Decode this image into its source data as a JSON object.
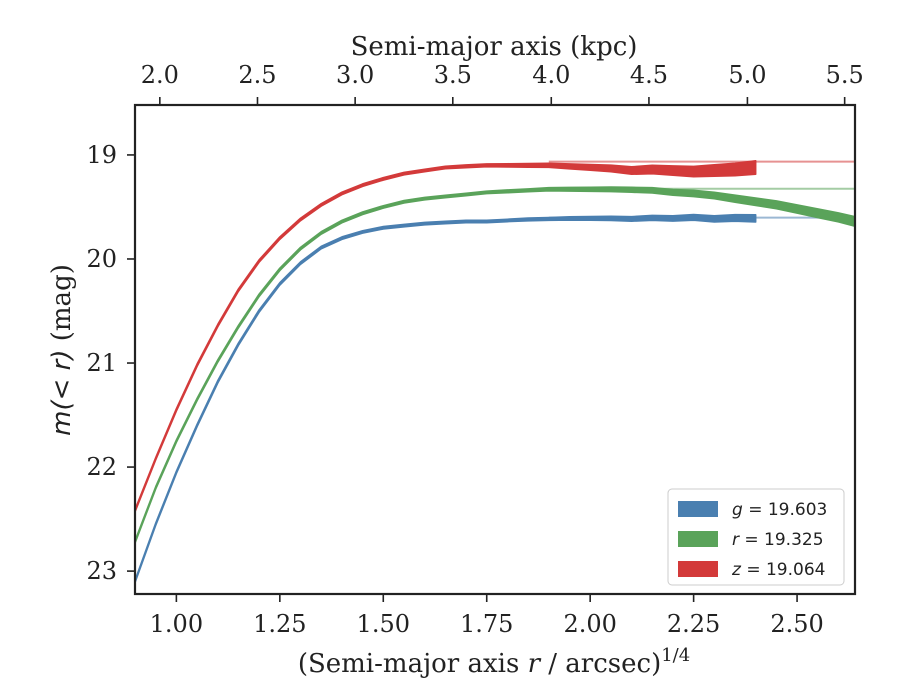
{
  "chart_data": {
    "type": "line",
    "title": "",
    "xlabel_bottom": "(Semi-major axis r / arcsec)",
    "xlabel_bottom_var": "r",
    "xlabel_bottom_pre": "(Semi-major axis ",
    "xlabel_bottom_post": " / arcsec)",
    "xlabel_bottom_exp": "1/4",
    "xlabel_top": "Semi-major axis (kpc)",
    "ylabel": "m(< r) (mag)",
    "ylabel_pre": "m",
    "ylabel_mid": "(< r)",
    "ylabel_post": " (mag)",
    "xlim": [
      0.9,
      2.64
    ],
    "ylim": [
      23.22,
      18.52
    ],
    "y_inverted": true,
    "x_ticks": [
      1.0,
      1.25,
      1.5,
      1.75,
      2.0,
      2.25,
      2.5
    ],
    "x_tick_labels": [
      "1.00",
      "1.25",
      "1.50",
      "1.75",
      "2.00",
      "2.25",
      "2.50"
    ],
    "y_ticks": [
      19,
      20,
      21,
      22,
      23
    ],
    "y_tick_labels": [
      "19",
      "20",
      "21",
      "22",
      "23"
    ],
    "top_ticks_kpc": [
      2.0,
      2.5,
      3.0,
      3.5,
      4.0,
      4.5,
      5.0,
      5.5
    ],
    "top_tick_labels": [
      "2.0",
      "2.5",
      "3.0",
      "3.5",
      "4.0",
      "4.5",
      "5.0",
      "5.5"
    ],
    "top_tick_x_positions": [
      0.96,
      1.196,
      1.432,
      1.668,
      1.906,
      2.142,
      2.38,
      2.615
    ],
    "legend_position": "lower right",
    "series": [
      {
        "name": "g",
        "label_var": "g",
        "label_value": " = 19.603",
        "asymptote": 19.603,
        "color": "#4a7fb0",
        "x": [
          0.9,
          0.95,
          1.0,
          1.05,
          1.1,
          1.15,
          1.2,
          1.25,
          1.3,
          1.35,
          1.4,
          1.45,
          1.5,
          1.55,
          1.6,
          1.65,
          1.7,
          1.75,
          1.8,
          1.85,
          1.9,
          1.95,
          2.0,
          2.05,
          2.1,
          2.15,
          2.2,
          2.25,
          2.3,
          2.35,
          2.4
        ],
        "y": [
          23.1,
          22.55,
          22.05,
          21.6,
          21.18,
          20.82,
          20.5,
          20.24,
          20.04,
          19.89,
          19.8,
          19.74,
          19.7,
          19.68,
          19.66,
          19.65,
          19.64,
          19.64,
          19.63,
          19.62,
          19.615,
          19.61,
          19.61,
          19.61,
          19.615,
          19.605,
          19.61,
          19.6,
          19.615,
          19.605,
          19.61
        ],
        "err": [
          0.01,
          0.01,
          0.01,
          0.01,
          0.01,
          0.01,
          0.01,
          0.01,
          0.01,
          0.01,
          0.01,
          0.01,
          0.01,
          0.01,
          0.01,
          0.01,
          0.012,
          0.012,
          0.012,
          0.014,
          0.014,
          0.016,
          0.018,
          0.02,
          0.022,
          0.024,
          0.026,
          0.028,
          0.03,
          0.032,
          0.035
        ]
      },
      {
        "name": "r",
        "label_var": "r",
        "label_value": " = 19.325",
        "asymptote": 19.325,
        "color": "#5aa35a",
        "x": [
          0.9,
          0.95,
          1.0,
          1.05,
          1.1,
          1.15,
          1.2,
          1.25,
          1.3,
          1.35,
          1.4,
          1.45,
          1.5,
          1.55,
          1.6,
          1.65,
          1.7,
          1.75,
          1.8,
          1.85,
          1.9,
          1.95,
          2.0,
          2.05,
          2.1,
          2.15,
          2.2,
          2.25,
          2.3,
          2.35,
          2.4,
          2.45,
          2.5,
          2.55,
          2.6,
          2.64
        ],
        "y": [
          22.72,
          22.2,
          21.75,
          21.35,
          20.98,
          20.65,
          20.35,
          20.1,
          19.9,
          19.75,
          19.64,
          19.56,
          19.5,
          19.45,
          19.42,
          19.4,
          19.38,
          19.36,
          19.35,
          19.34,
          19.33,
          19.33,
          19.33,
          19.33,
          19.335,
          19.34,
          19.36,
          19.37,
          19.39,
          19.42,
          19.45,
          19.48,
          19.52,
          19.56,
          19.6,
          19.64
        ],
        "err": [
          0.01,
          0.01,
          0.01,
          0.01,
          0.01,
          0.01,
          0.01,
          0.01,
          0.01,
          0.01,
          0.01,
          0.01,
          0.01,
          0.01,
          0.012,
          0.012,
          0.012,
          0.012,
          0.014,
          0.014,
          0.016,
          0.018,
          0.02,
          0.022,
          0.024,
          0.026,
          0.028,
          0.03,
          0.032,
          0.034,
          0.036,
          0.038,
          0.04,
          0.042,
          0.044,
          0.046
        ]
      },
      {
        "name": "z",
        "label_var": "z",
        "label_value": " = 19.064",
        "asymptote": 19.064,
        "color": "#d33a3a",
        "x": [
          0.9,
          0.95,
          1.0,
          1.05,
          1.1,
          1.15,
          1.2,
          1.25,
          1.3,
          1.35,
          1.4,
          1.45,
          1.5,
          1.55,
          1.6,
          1.65,
          1.7,
          1.75,
          1.8,
          1.85,
          1.9,
          1.95,
          2.0,
          2.05,
          2.1,
          2.15,
          2.2,
          2.25,
          2.3,
          2.35,
          2.4
        ],
        "y": [
          22.42,
          21.92,
          21.45,
          21.02,
          20.64,
          20.3,
          20.02,
          19.8,
          19.62,
          19.48,
          19.37,
          19.29,
          19.23,
          19.18,
          19.15,
          19.12,
          19.11,
          19.1,
          19.1,
          19.1,
          19.1,
          19.11,
          19.12,
          19.13,
          19.15,
          19.14,
          19.15,
          19.16,
          19.15,
          19.14,
          19.12
        ],
        "err": [
          0.01,
          0.01,
          0.01,
          0.01,
          0.01,
          0.01,
          0.01,
          0.01,
          0.01,
          0.01,
          0.01,
          0.01,
          0.01,
          0.012,
          0.012,
          0.012,
          0.014,
          0.014,
          0.016,
          0.018,
          0.02,
          0.024,
          0.028,
          0.032,
          0.036,
          0.04,
          0.045,
          0.05,
          0.055,
          0.06,
          0.065
        ]
      }
    ]
  }
}
